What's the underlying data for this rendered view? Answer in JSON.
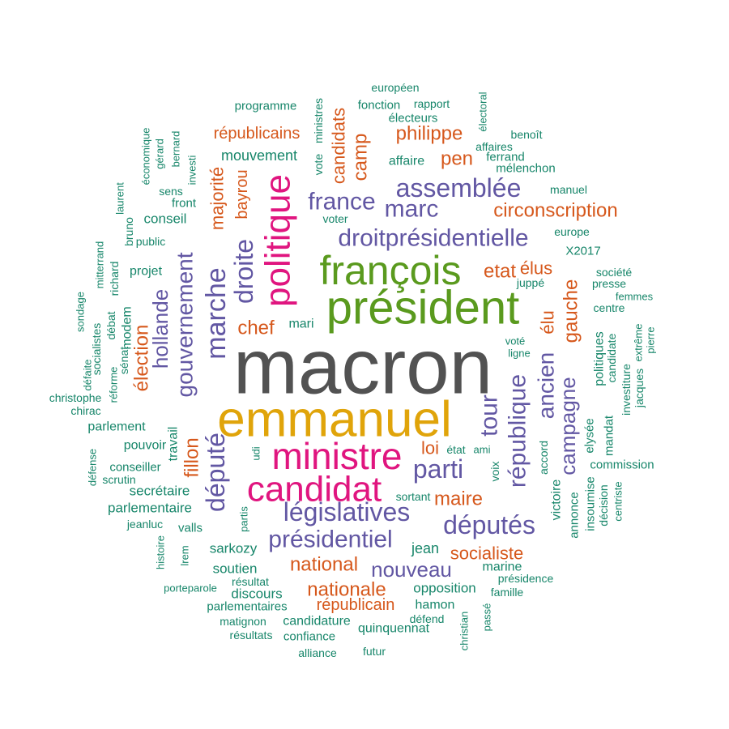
{
  "palette": {
    "gray": "#525252",
    "gold": "#e0a40a",
    "magenta": "#e0157f",
    "green": "#5a9a1e",
    "purple": "#6257a3",
    "orange": "#d6581c",
    "teal": "#17866a"
  },
  "words": [
    {
      "text": "macron",
      "color": "gray"
    },
    {
      "text": "emmanuel",
      "color": "gold"
    },
    {
      "text": "président",
      "color": "green"
    },
    {
      "text": "françois",
      "color": "green"
    },
    {
      "text": "ministre",
      "color": "magenta"
    },
    {
      "text": "candidat",
      "color": "magenta"
    },
    {
      "text": "politique",
      "color": "magenta"
    },
    {
      "text": "législatives",
      "color": "purple"
    },
    {
      "text": "présidentiel",
      "color": "purple"
    },
    {
      "text": "droitprésidentielle",
      "color": "purple"
    },
    {
      "text": "assemblée",
      "color": "purple"
    },
    {
      "text": "marc",
      "color": "purple"
    },
    {
      "text": "france",
      "color": "purple"
    },
    {
      "text": "parti",
      "color": "purple"
    },
    {
      "text": "députés",
      "color": "purple"
    },
    {
      "text": "république",
      "color": "purple"
    },
    {
      "text": "droite",
      "color": "purple"
    },
    {
      "text": "marche",
      "color": "purple"
    },
    {
      "text": "gouvernement",
      "color": "purple"
    },
    {
      "text": "hollande",
      "color": "purple"
    },
    {
      "text": "député",
      "color": "purple"
    },
    {
      "text": "tour",
      "color": "purple"
    },
    {
      "text": "ancien",
      "color": "purple"
    },
    {
      "text": "campagne",
      "color": "purple"
    },
    {
      "text": "nouveau",
      "color": "purple"
    },
    {
      "text": "circonscription",
      "color": "orange"
    },
    {
      "text": "républicains",
      "color": "orange"
    },
    {
      "text": "candidats",
      "color": "orange"
    },
    {
      "text": "camp",
      "color": "orange"
    },
    {
      "text": "philippe",
      "color": "orange"
    },
    {
      "text": "pen",
      "color": "orange"
    },
    {
      "text": "majorité",
      "color": "orange"
    },
    {
      "text": "bayrou",
      "color": "orange"
    },
    {
      "text": "etat",
      "color": "orange"
    },
    {
      "text": "élus",
      "color": "orange"
    },
    {
      "text": "gauche",
      "color": "orange"
    },
    {
      "text": "élu",
      "color": "orange"
    },
    {
      "text": "chef",
      "color": "orange"
    },
    {
      "text": "élection",
      "color": "orange"
    },
    {
      "text": "fillon",
      "color": "orange"
    },
    {
      "text": "loi",
      "color": "orange"
    },
    {
      "text": "maire",
      "color": "orange"
    },
    {
      "text": "national",
      "color": "orange"
    },
    {
      "text": "nationale",
      "color": "orange"
    },
    {
      "text": "socialiste",
      "color": "orange"
    },
    {
      "text": "républicain",
      "color": "orange"
    },
    {
      "text": "programme",
      "color": "teal"
    },
    {
      "text": "ministres",
      "color": "teal"
    },
    {
      "text": "vote",
      "color": "teal"
    },
    {
      "text": "européen",
      "color": "teal"
    },
    {
      "text": "fonction",
      "color": "teal"
    },
    {
      "text": "rapport",
      "color": "teal"
    },
    {
      "text": "électeurs",
      "color": "teal"
    },
    {
      "text": "électoral",
      "color": "teal"
    },
    {
      "text": "benoît",
      "color": "teal"
    },
    {
      "text": "affaires",
      "color": "teal"
    },
    {
      "text": "ferrand",
      "color": "teal"
    },
    {
      "text": "mélenchon",
      "color": "teal"
    },
    {
      "text": "affaire",
      "color": "teal"
    },
    {
      "text": "mouvement",
      "color": "teal"
    },
    {
      "text": "manuel",
      "color": "teal"
    },
    {
      "text": "europe",
      "color": "teal"
    },
    {
      "text": "X2017",
      "color": "teal"
    },
    {
      "text": "société",
      "color": "teal"
    },
    {
      "text": "presse",
      "color": "teal"
    },
    {
      "text": "juppé",
      "color": "teal"
    },
    {
      "text": "femmes",
      "color": "teal"
    },
    {
      "text": "centre",
      "color": "teal"
    },
    {
      "text": "économique",
      "color": "teal"
    },
    {
      "text": "gérard",
      "color": "teal"
    },
    {
      "text": "bernard",
      "color": "teal"
    },
    {
      "text": "investi",
      "color": "teal"
    },
    {
      "text": "sens",
      "color": "teal"
    },
    {
      "text": "front",
      "color": "teal"
    },
    {
      "text": "laurent",
      "color": "teal"
    },
    {
      "text": "conseil",
      "color": "teal"
    },
    {
      "text": "voter",
      "color": "teal"
    },
    {
      "text": "public",
      "color": "teal"
    },
    {
      "text": "bruno",
      "color": "teal"
    },
    {
      "text": "projet",
      "color": "teal"
    },
    {
      "text": "mitterrand",
      "color": "teal"
    },
    {
      "text": "richard",
      "color": "teal"
    },
    {
      "text": "sondage",
      "color": "teal"
    },
    {
      "text": "débat",
      "color": "teal"
    },
    {
      "text": "modem",
      "color": "teal"
    },
    {
      "text": "mari",
      "color": "teal"
    },
    {
      "text": "socialistes",
      "color": "teal"
    },
    {
      "text": "sénat",
      "color": "teal"
    },
    {
      "text": "défaite",
      "color": "teal"
    },
    {
      "text": "réforme",
      "color": "teal"
    },
    {
      "text": "christophe",
      "color": "teal"
    },
    {
      "text": "chirac",
      "color": "teal"
    },
    {
      "text": "voté",
      "color": "teal"
    },
    {
      "text": "ligne",
      "color": "teal"
    },
    {
      "text": "politiques",
      "color": "teal"
    },
    {
      "text": "candidate",
      "color": "teal"
    },
    {
      "text": "extrême",
      "color": "teal"
    },
    {
      "text": "pierre",
      "color": "teal"
    },
    {
      "text": "jacques",
      "color": "teal"
    },
    {
      "text": "investiture",
      "color": "teal"
    },
    {
      "text": "parlement",
      "color": "teal"
    },
    {
      "text": "travail",
      "color": "teal"
    },
    {
      "text": "pouvoir",
      "color": "teal"
    },
    {
      "text": "udi",
      "color": "teal"
    },
    {
      "text": "état",
      "color": "teal"
    },
    {
      "text": "ami",
      "color": "teal"
    },
    {
      "text": "accord",
      "color": "teal"
    },
    {
      "text": "elysée",
      "color": "teal"
    },
    {
      "text": "mandat",
      "color": "teal"
    },
    {
      "text": "commission",
      "color": "teal"
    },
    {
      "text": "défense",
      "color": "teal"
    },
    {
      "text": "conseiller",
      "color": "teal"
    },
    {
      "text": "scrutin",
      "color": "teal"
    },
    {
      "text": "secrétaire",
      "color": "teal"
    },
    {
      "text": "voix",
      "color": "teal"
    },
    {
      "text": "victoire",
      "color": "teal"
    },
    {
      "text": "annonce",
      "color": "teal"
    },
    {
      "text": "insoumise",
      "color": "teal"
    },
    {
      "text": "décision",
      "color": "teal"
    },
    {
      "text": "centriste",
      "color": "teal"
    },
    {
      "text": "parlementaire",
      "color": "teal"
    },
    {
      "text": "sortant",
      "color": "teal"
    },
    {
      "text": "jeanluc",
      "color": "teal"
    },
    {
      "text": "valls",
      "color": "teal"
    },
    {
      "text": "partis",
      "color": "teal"
    },
    {
      "text": "jean",
      "color": "teal"
    },
    {
      "text": "sarkozy",
      "color": "teal"
    },
    {
      "text": "histoire",
      "color": "teal"
    },
    {
      "text": "lrem",
      "color": "teal"
    },
    {
      "text": "soutien",
      "color": "teal"
    },
    {
      "text": "marine",
      "color": "teal"
    },
    {
      "text": "présidence",
      "color": "teal"
    },
    {
      "text": "porteparole",
      "color": "teal"
    },
    {
      "text": "résultat",
      "color": "teal"
    },
    {
      "text": "discours",
      "color": "teal"
    },
    {
      "text": "opposition",
      "color": "teal"
    },
    {
      "text": "famille",
      "color": "teal"
    },
    {
      "text": "parlementaires",
      "color": "teal"
    },
    {
      "text": "hamon",
      "color": "teal"
    },
    {
      "text": "matignon",
      "color": "teal"
    },
    {
      "text": "candidature",
      "color": "teal"
    },
    {
      "text": "défend",
      "color": "teal"
    },
    {
      "text": "résultats",
      "color": "teal"
    },
    {
      "text": "confiance",
      "color": "teal"
    },
    {
      "text": "quinquennat",
      "color": "teal"
    },
    {
      "text": "christian",
      "color": "teal"
    },
    {
      "text": "passé",
      "color": "teal"
    },
    {
      "text": "alliance",
      "color": "teal"
    },
    {
      "text": "futur",
      "color": "teal"
    }
  ]
}
